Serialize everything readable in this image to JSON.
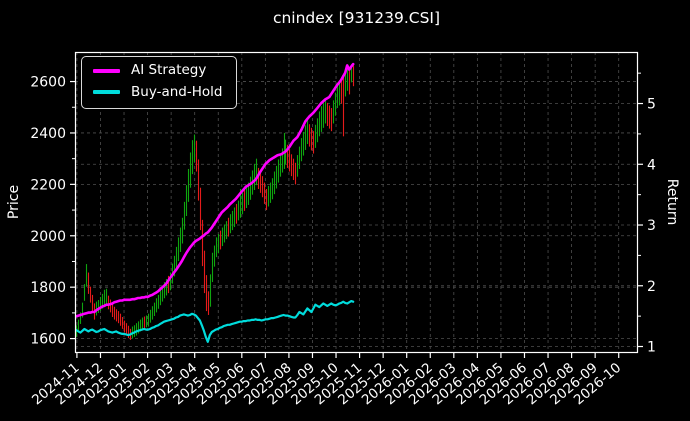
{
  "title": "cnindex [931239.CSI]",
  "legend": {
    "items": [
      {
        "label": "AI Strategy",
        "color": "#ff00ff"
      },
      {
        "label": "Buy-and-Hold",
        "color": "#00dcdc"
      }
    ]
  },
  "colors": {
    "background": "#000000",
    "axis": "#ffffff",
    "grid": "#4f4f4f",
    "tick_text": "#ffffff",
    "candle_up": "#0fa50f",
    "candle_down": "#e51b1b",
    "ai_line": "#ff00ff",
    "bh_line": "#00dcdc"
  },
  "chart_data": {
    "type": "mixed",
    "subtype": "candlestick-price plus two cumulative-return lines",
    "title": "cnindex [931239.CSI]",
    "x_axis": {
      "tick_labels": [
        "2024-11",
        "2024-12",
        "2025-01",
        "2025-02",
        "2025-03",
        "2025-04",
        "2025-05",
        "2025-06",
        "2025-07",
        "2025-08",
        "2025-09",
        "2025-10",
        "2025-11",
        "2025-12",
        "2026-01",
        "2026-02",
        "2026-03",
        "2026-04",
        "2026-05",
        "2026-06",
        "2026-07",
        "2026-08",
        "2026-09",
        "2026-10"
      ],
      "xlim_months": [
        -0.06,
        23.84
      ],
      "label_rotation_deg": 40
    },
    "price_axis": {
      "label": "Price",
      "side": "left",
      "ticks": [
        1600,
        1800,
        2000,
        2200,
        2400,
        2600
      ],
      "minor_ticks": [
        1700,
        1900,
        2100,
        2300,
        2500
      ],
      "ylim": [
        1542,
        2713
      ]
    },
    "return_axis": {
      "label": "Return",
      "side": "right",
      "ticks": [
        1,
        2,
        3,
        4,
        5
      ],
      "minor_ticks": [
        1.5,
        2.5,
        3.5,
        4.5,
        5.5
      ],
      "ylim": [
        0.885,
        5.84
      ]
    },
    "grid": {
      "enabled": true,
      "dashed": true
    },
    "legend_position": "upper-left",
    "series": {
      "candles_price": {
        "name": "cnindex OHLC bars",
        "axis": "price",
        "x0_month": 0,
        "dx_month": 0.08453,
        "bars_format": [
          "high",
          "low",
          "up(1=green,0=red)"
        ],
        "bars": [
          [
            1650,
            1605,
            1
          ],
          [
            1672,
            1630,
            1
          ],
          [
            1700,
            1655,
            1
          ],
          [
            1738,
            1680,
            1
          ],
          [
            1810,
            1745,
            1
          ],
          [
            1888,
            1800,
            1
          ],
          [
            1855,
            1772,
            0
          ],
          [
            1800,
            1738,
            0
          ],
          [
            1768,
            1705,
            0
          ],
          [
            1735,
            1672,
            0
          ],
          [
            1742,
            1688,
            1
          ],
          [
            1748,
            1698,
            1
          ],
          [
            1760,
            1706,
            1
          ],
          [
            1772,
            1715,
            1
          ],
          [
            1788,
            1722,
            1
          ],
          [
            1792,
            1730,
            1
          ],
          [
            1765,
            1712,
            0
          ],
          [
            1750,
            1700,
            0
          ],
          [
            1732,
            1682,
            0
          ],
          [
            1722,
            1672,
            0
          ],
          [
            1712,
            1665,
            0
          ],
          [
            1705,
            1658,
            0
          ],
          [
            1695,
            1648,
            0
          ],
          [
            1682,
            1636,
            0
          ],
          [
            1668,
            1622,
            0
          ],
          [
            1658,
            1612,
            0
          ],
          [
            1648,
            1600,
            0
          ],
          [
            1636,
            1593,
            0
          ],
          [
            1645,
            1598,
            1
          ],
          [
            1650,
            1604,
            1
          ],
          [
            1658,
            1610,
            1
          ],
          [
            1665,
            1618,
            1
          ],
          [
            1672,
            1626,
            1
          ],
          [
            1680,
            1634,
            1
          ],
          [
            1684,
            1638,
            0
          ],
          [
            1688,
            1642,
            1
          ],
          [
            1695,
            1645,
            1
          ],
          [
            1710,
            1660,
            1
          ],
          [
            1724,
            1672,
            1
          ],
          [
            1738,
            1686,
            1
          ],
          [
            1755,
            1700,
            1
          ],
          [
            1768,
            1714,
            1
          ],
          [
            1785,
            1728,
            1
          ],
          [
            1800,
            1742,
            1
          ],
          [
            1818,
            1755,
            1
          ],
          [
            1830,
            1766,
            1
          ],
          [
            1842,
            1775,
            0
          ],
          [
            1855,
            1786,
            1
          ],
          [
            1890,
            1812,
            1
          ],
          [
            1920,
            1840,
            1
          ],
          [
            1955,
            1868,
            1
          ],
          [
            1992,
            1900,
            1
          ],
          [
            2030,
            1935,
            1
          ],
          [
            2068,
            1968,
            1
          ],
          [
            2130,
            2022,
            1
          ],
          [
            2195,
            2075,
            1
          ],
          [
            2258,
            2130,
            1
          ],
          [
            2322,
            2185,
            1
          ],
          [
            2370,
            2238,
            1
          ],
          [
            2392,
            2285,
            1
          ],
          [
            2368,
            2248,
            0
          ],
          [
            2295,
            2135,
            0
          ],
          [
            2185,
            2020,
            0
          ],
          [
            2060,
            1880,
            0
          ],
          [
            1940,
            1775,
            0
          ],
          [
            1845,
            1705,
            0
          ],
          [
            1782,
            1690,
            0
          ],
          [
            1848,
            1722,
            1
          ],
          [
            1932,
            1818,
            1
          ],
          [
            1960,
            1878,
            1
          ],
          [
            1992,
            1915,
            1
          ],
          [
            2005,
            1930,
            1
          ],
          [
            2018,
            1945,
            0
          ],
          [
            2030,
            1958,
            1
          ],
          [
            2042,
            1972,
            1
          ],
          [
            2055,
            1985,
            1
          ],
          [
            2068,
            1995,
            0
          ],
          [
            2082,
            2008,
            1
          ],
          [
            2095,
            2020,
            1
          ],
          [
            2108,
            2032,
            1
          ],
          [
            2122,
            2045,
            0
          ],
          [
            2135,
            2058,
            1
          ],
          [
            2180,
            2068,
            1
          ],
          [
            2165,
            2082,
            1
          ],
          [
            2178,
            2095,
            0
          ],
          [
            2190,
            2106,
            1
          ],
          [
            2205,
            2118,
            1
          ],
          [
            2228,
            2138,
            1
          ],
          [
            2252,
            2158,
            1
          ],
          [
            2278,
            2176,
            1
          ],
          [
            2298,
            2195,
            1
          ],
          [
            2262,
            2180,
            0
          ],
          [
            2248,
            2165,
            0
          ],
          [
            2230,
            2148,
            0
          ],
          [
            2205,
            2122,
            0
          ],
          [
            2180,
            2098,
            0
          ],
          [
            2192,
            2112,
            1
          ],
          [
            2205,
            2126,
            1
          ],
          [
            2222,
            2140,
            1
          ],
          [
            2248,
            2160,
            1
          ],
          [
            2270,
            2182,
            1
          ],
          [
            2295,
            2205,
            1
          ],
          [
            2318,
            2228,
            1
          ],
          [
            2338,
            2244,
            1
          ],
          [
            2398,
            2258,
            1
          ],
          [
            2372,
            2275,
            1
          ],
          [
            2352,
            2262,
            0
          ],
          [
            2335,
            2248,
            0
          ],
          [
            2315,
            2230,
            0
          ],
          [
            2298,
            2215,
            0
          ],
          [
            2282,
            2198,
            0
          ],
          [
            2312,
            2228,
            1
          ],
          [
            2345,
            2258,
            1
          ],
          [
            2378,
            2288,
            1
          ],
          [
            2402,
            2310,
            1
          ],
          [
            2428,
            2332,
            1
          ],
          [
            2452,
            2355,
            1
          ],
          [
            2432,
            2345,
            0
          ],
          [
            2418,
            2330,
            0
          ],
          [
            2405,
            2318,
            0
          ],
          [
            2430,
            2340,
            1
          ],
          [
            2455,
            2362,
            1
          ],
          [
            2482,
            2385,
            1
          ],
          [
            2502,
            2402,
            1
          ],
          [
            2518,
            2418,
            1
          ],
          [
            2528,
            2435,
            1
          ],
          [
            2515,
            2425,
            0
          ],
          [
            2505,
            2415,
            0
          ],
          [
            2495,
            2405,
            0
          ],
          [
            2525,
            2435,
            1
          ],
          [
            2555,
            2465,
            1
          ],
          [
            2588,
            2495,
            1
          ],
          [
            2598,
            2505,
            1
          ],
          [
            2608,
            2512,
            0
          ],
          [
            2618,
            2385,
            0
          ],
          [
            2638,
            2540,
            1
          ],
          [
            2655,
            2562,
            1
          ],
          [
            2640,
            2548,
            0
          ],
          [
            2665,
            2595,
            1
          ],
          [
            2660,
            2580,
            0
          ]
        ]
      },
      "ai_strategy_return": {
        "name": "AI Strategy",
        "axis": "return",
        "x0_month": 0,
        "dx_month": 0.08453,
        "values": [
          1.49,
          1.5,
          1.51,
          1.52,
          1.53,
          1.54,
          1.55,
          1.55,
          1.56,
          1.56,
          1.59,
          1.61,
          1.63,
          1.65,
          1.66,
          1.68,
          1.68,
          1.69,
          1.7,
          1.72,
          1.73,
          1.74,
          1.75,
          1.75,
          1.76,
          1.76,
          1.76,
          1.76,
          1.77,
          1.77,
          1.78,
          1.79,
          1.79,
          1.8,
          1.8,
          1.81,
          1.81,
          1.83,
          1.84,
          1.86,
          1.88,
          1.9,
          1.93,
          1.96,
          1.99,
          2.02,
          2.07,
          2.12,
          2.16,
          2.21,
          2.25,
          2.3,
          2.35,
          2.4,
          2.46,
          2.52,
          2.57,
          2.62,
          2.66,
          2.7,
          2.73,
          2.75,
          2.77,
          2.8,
          2.82,
          2.85,
          2.87,
          2.91,
          2.95,
          3.0,
          3.05,
          3.1,
          3.15,
          3.2,
          3.23,
          3.26,
          3.29,
          3.33,
          3.36,
          3.39,
          3.42,
          3.46,
          3.5,
          3.54,
          3.58,
          3.62,
          3.64,
          3.66,
          3.68,
          3.71,
          3.74,
          3.79,
          3.85,
          3.9,
          3.95,
          4.0,
          4.03,
          4.06,
          4.08,
          4.1,
          4.12,
          4.14,
          4.15,
          4.16,
          4.18,
          4.2,
          4.24,
          4.28,
          4.33,
          4.38,
          4.41,
          4.44,
          4.5,
          4.56,
          4.63,
          4.7,
          4.74,
          4.78,
          4.81,
          4.84,
          4.88,
          4.92,
          4.96,
          5.0,
          5.03,
          5.06,
          5.08,
          5.1,
          5.15,
          5.2,
          5.25,
          5.3,
          5.34,
          5.38,
          5.44,
          5.5,
          5.62,
          5.55,
          5.6,
          5.64
        ]
      },
      "buy_and_hold_return": {
        "name": "Buy-and-Hold",
        "axis": "return",
        "x0_month": 0,
        "dx_month": 0.08453,
        "values": [
          1.26,
          1.24,
          1.22,
          1.25,
          1.28,
          1.26,
          1.24,
          1.26,
          1.27,
          1.25,
          1.23,
          1.24,
          1.26,
          1.27,
          1.28,
          1.26,
          1.24,
          1.23,
          1.22,
          1.23,
          1.24,
          1.22,
          1.21,
          1.2,
          1.2,
          1.19,
          1.18,
          1.19,
          1.21,
          1.22,
          1.24,
          1.25,
          1.26,
          1.27,
          1.28,
          1.27,
          1.27,
          1.28,
          1.3,
          1.31,
          1.33,
          1.34,
          1.36,
          1.38,
          1.4,
          1.41,
          1.42,
          1.43,
          1.44,
          1.45,
          1.47,
          1.48,
          1.5,
          1.51,
          1.52,
          1.51,
          1.5,
          1.51,
          1.53,
          1.52,
          1.5,
          1.46,
          1.42,
          1.34,
          1.25,
          1.15,
          1.07,
          1.18,
          1.23,
          1.25,
          1.27,
          1.28,
          1.3,
          1.31,
          1.33,
          1.34,
          1.35,
          1.35,
          1.36,
          1.37,
          1.38,
          1.39,
          1.4,
          1.4,
          1.41,
          1.41,
          1.42,
          1.42,
          1.43,
          1.43,
          1.44,
          1.43,
          1.43,
          1.42,
          1.43,
          1.44,
          1.44,
          1.45,
          1.46,
          1.46,
          1.47,
          1.48,
          1.49,
          1.5,
          1.51,
          1.5,
          1.5,
          1.49,
          1.48,
          1.47,
          1.47,
          1.51,
          1.56,
          1.54,
          1.52,
          1.57,
          1.62,
          1.59,
          1.56,
          1.62,
          1.68,
          1.66,
          1.64,
          1.67,
          1.7,
          1.68,
          1.66,
          1.68,
          1.7,
          1.68,
          1.67,
          1.68,
          1.7,
          1.71,
          1.73,
          1.71,
          1.7,
          1.72,
          1.74,
          1.73
        ]
      }
    }
  }
}
